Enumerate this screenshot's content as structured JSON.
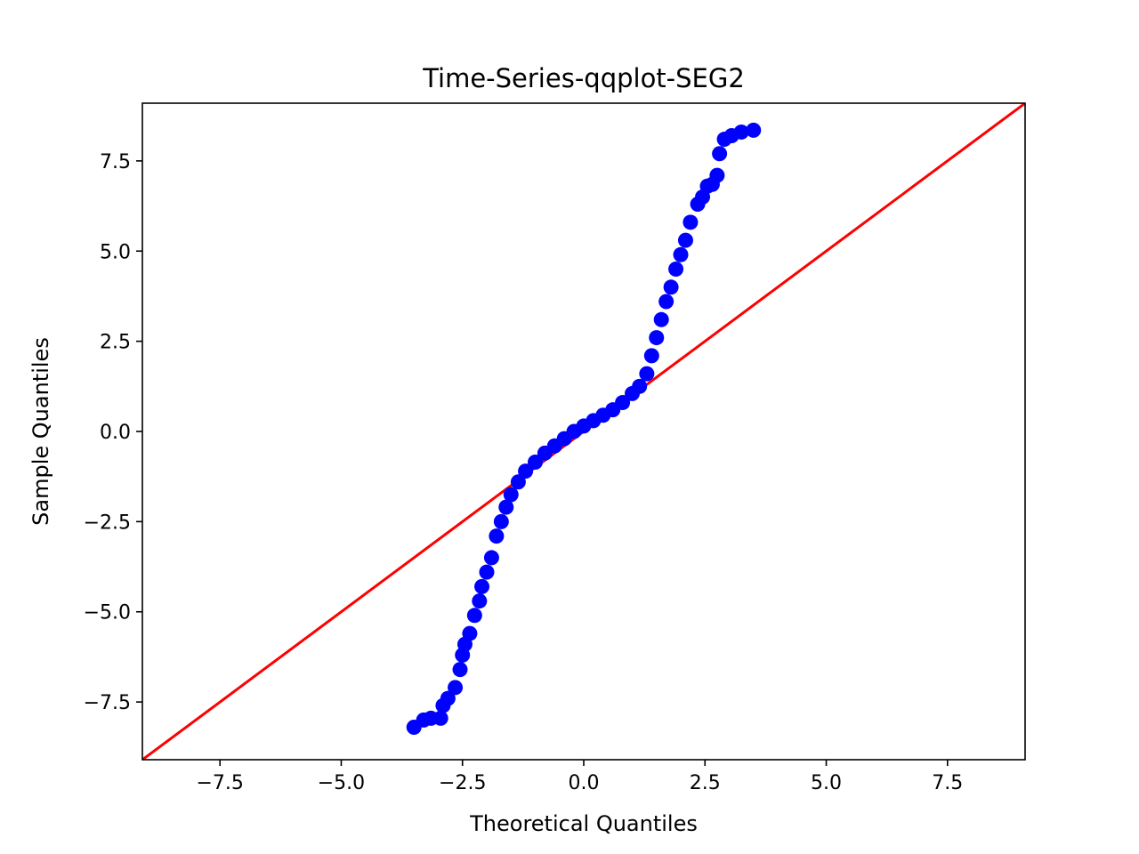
{
  "chart_data": {
    "type": "scatter",
    "title": "Time-Series-qqplot-SEG2",
    "xlabel": "Theoretical Quantiles",
    "ylabel": "Sample Quantiles",
    "xlim": [
      -9.1,
      9.1
    ],
    "ylim": [
      -9.1,
      9.1
    ],
    "xticks": [
      -7.5,
      -5.0,
      -2.5,
      0.0,
      2.5,
      5.0,
      7.5
    ],
    "yticks": [
      -7.5,
      -5.0,
      -2.5,
      0.0,
      2.5,
      5.0,
      7.5
    ],
    "xtick_labels": [
      "−7.5",
      "−5.0",
      "−2.5",
      "0.0",
      "2.5",
      "5.0",
      "7.5"
    ],
    "ytick_labels": [
      "−7.5",
      "−5.0",
      "−2.5",
      "0.0",
      "2.5",
      "5.0",
      "7.5"
    ],
    "grid": false,
    "marker_color": "#0000ff",
    "line_color": "#ff0000",
    "reference_line": {
      "slope": 1,
      "intercept": 0
    },
    "series": [
      {
        "x": [
          -3.5,
          -3.3,
          -3.15,
          -2.95,
          -2.9,
          -2.8,
          -2.65,
          -2.55,
          -2.5,
          -2.45,
          -2.35,
          -2.25,
          -2.15,
          -2.1,
          -2.0,
          -1.9,
          -1.8,
          -1.7,
          -1.6,
          -1.5,
          -1.35,
          -1.2,
          -1.0,
          -0.8,
          -0.6,
          -0.4,
          -0.2,
          0.0,
          0.2,
          0.4,
          0.6,
          0.8,
          1.0,
          1.15,
          1.3,
          1.4,
          1.5,
          1.6,
          1.7,
          1.8,
          1.9,
          2.0,
          2.1,
          2.2,
          2.35,
          2.45,
          2.55,
          2.65,
          2.75,
          2.8,
          2.9,
          3.05,
          3.25,
          3.5
        ],
        "y": [
          -8.2,
          -8.0,
          -7.95,
          -7.95,
          -7.6,
          -7.4,
          -7.1,
          -6.6,
          -6.2,
          -5.9,
          -5.6,
          -5.1,
          -4.7,
          -4.3,
          -3.9,
          -3.5,
          -2.9,
          -2.5,
          -2.1,
          -1.75,
          -1.4,
          -1.1,
          -0.85,
          -0.6,
          -0.4,
          -0.2,
          0.0,
          0.15,
          0.3,
          0.45,
          0.6,
          0.8,
          1.05,
          1.25,
          1.6,
          2.1,
          2.6,
          3.1,
          3.6,
          4.0,
          4.5,
          4.9,
          5.3,
          5.8,
          6.3,
          6.5,
          6.8,
          6.85,
          7.1,
          7.7,
          8.1,
          8.2,
          8.3,
          8.35
        ]
      }
    ]
  }
}
